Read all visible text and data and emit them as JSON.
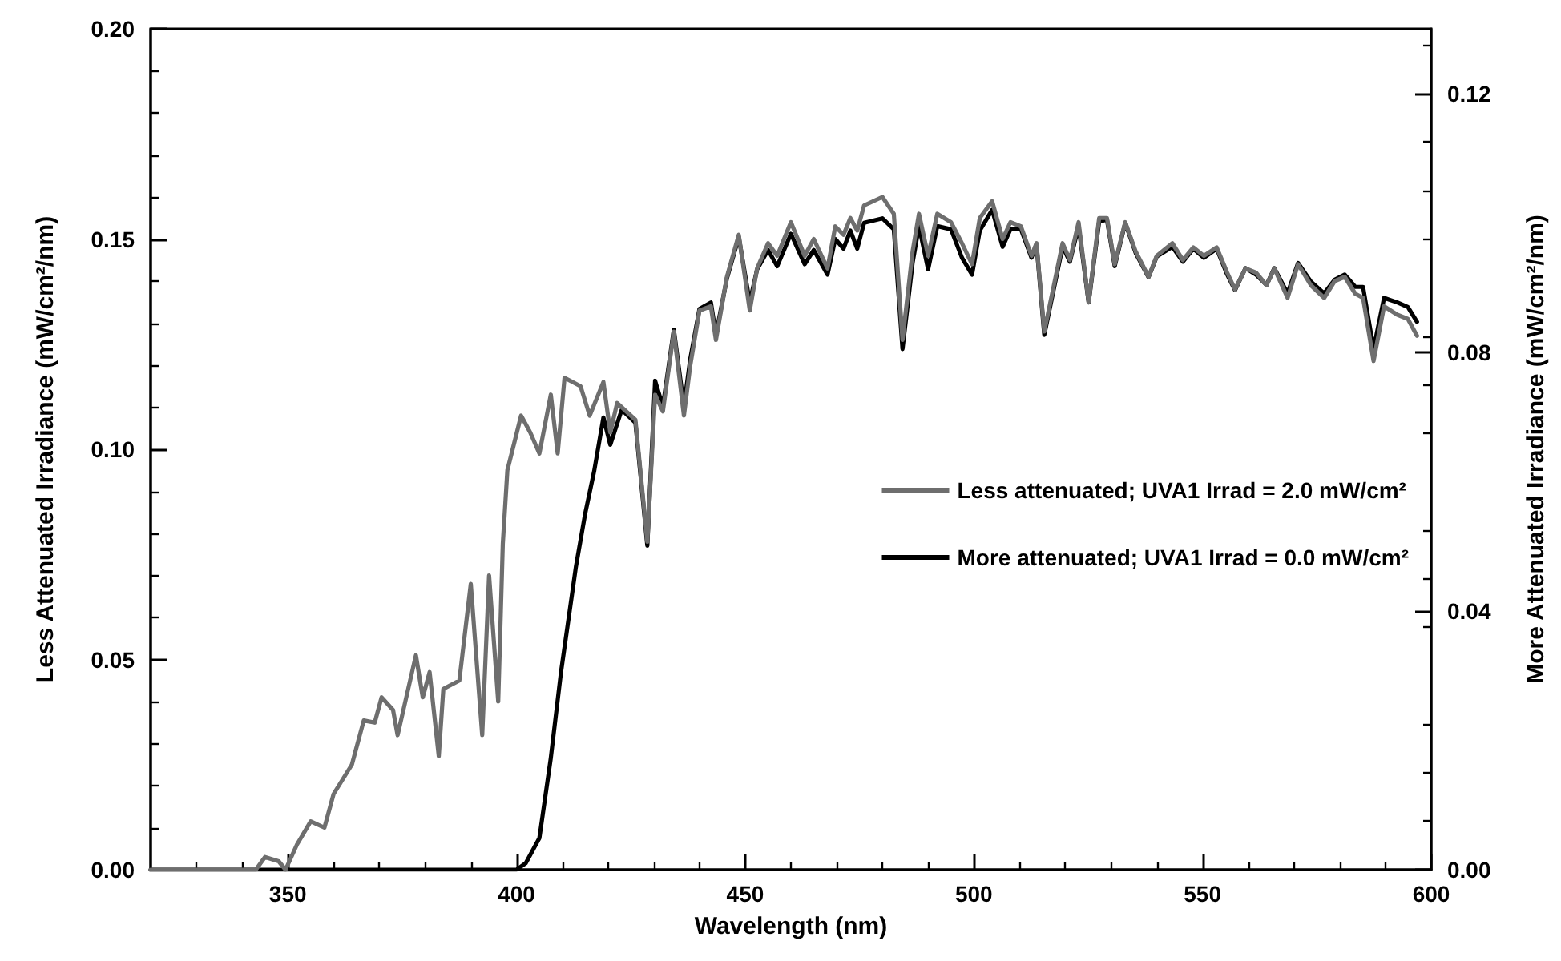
{
  "chart_data": {
    "type": "line",
    "xlabel": "Wavelength (nm)",
    "ylabel": "Less Attenuated Irradiance (mW/cm²/nm)",
    "y2label": "More Attenuated Irradiance (mW/cm²/nm)",
    "xlim": [
      320,
      600
    ],
    "xticks": [
      350,
      400,
      450,
      500,
      550,
      600
    ],
    "ylim": [
      0,
      0.2
    ],
    "yticks": [
      {
        "value": 0,
        "label": "0.00"
      },
      {
        "value": 0.05,
        "label": "0.05"
      },
      {
        "value": 0.1,
        "label": "0.10"
      },
      {
        "value": 0.15,
        "label": "0.15"
      },
      {
        "value": 0.2,
        "label": "0.20"
      }
    ],
    "y2lim": [
      0,
      0.13
    ],
    "y2ticks": [
      {
        "value": 0,
        "label": "0.00"
      },
      {
        "value": 0.04,
        "label": "0.04"
      },
      {
        "value": 0.08,
        "label": "0.08"
      },
      {
        "value": 0.12,
        "label": "0.12"
      }
    ],
    "legend": "bottom right",
    "grid": false,
    "marker": "none",
    "line_style": "solid",
    "series": [
      {
        "name": "Less attenuated; UVA1 Irrad = 2.0 mW/cm²",
        "color": "#6e6e6e",
        "x": [
          320,
          343,
          345,
          348,
          349.5,
          352,
          355,
          358,
          360,
          364,
          366.6,
          369,
          370.5,
          373,
          374,
          378,
          379.5,
          381,
          383,
          384,
          387.5,
          390,
          392.5,
          394,
          396,
          397,
          398,
          401,
          403,
          405,
          407.5,
          409,
          410.5,
          414,
          416,
          419,
          420.5,
          422,
          426,
          428.6,
          430.3,
          432,
          434.4,
          436.6,
          438,
          440,
          442.5,
          443.6,
          446,
          448.6,
          451,
          452.6,
          455,
          457,
          460,
          463,
          465,
          468,
          469.7,
          471.5,
          473,
          474.5,
          476,
          480,
          482.5,
          484.4,
          486.6,
          488,
          490,
          492,
          495,
          497.4,
          499.6,
          501.3,
          504,
          506.3,
          508,
          510.3,
          512.6,
          513.7,
          515.4,
          519.4,
          521,
          522.9,
          525.1,
          527.4,
          529.1,
          530.8,
          533.1,
          535.4,
          538.2,
          540,
          543.4,
          545.7,
          548,
          550.3,
          553.1,
          555.4,
          557.1,
          559.4,
          561.7,
          564,
          565.7,
          568.6,
          570.9,
          573.7,
          576.6,
          578.9,
          581.1,
          583.4,
          585.1,
          587.4,
          589.7,
          592.6,
          594.9,
          596.9
        ],
        "values": [
          0,
          0,
          0.003,
          0.002,
          0,
          0.006,
          0.0115,
          0.01,
          0.018,
          0.025,
          0.0355,
          0.035,
          0.041,
          0.038,
          0.032,
          0.051,
          0.041,
          0.047,
          0.027,
          0.043,
          0.045,
          0.068,
          0.032,
          0.07,
          0.04,
          0.0775,
          0.095,
          0.108,
          0.104,
          0.099,
          0.113,
          0.099,
          0.117,
          0.115,
          0.108,
          0.116,
          0.104,
          0.111,
          0.107,
          0.078,
          0.113,
          0.109,
          0.128,
          0.108,
          0.12,
          0.133,
          0.134,
          0.126,
          0.141,
          0.151,
          0.133,
          0.143,
          0.149,
          0.146,
          0.154,
          0.146,
          0.15,
          0.143,
          0.153,
          0.151,
          0.155,
          0.152,
          0.158,
          0.16,
          0.156,
          0.126,
          0.147,
          0.156,
          0.146,
          0.156,
          0.154,
          0.149,
          0.144,
          0.155,
          0.159,
          0.15,
          0.154,
          0.153,
          0.146,
          0.149,
          0.128,
          0.149,
          0.145,
          0.154,
          0.135,
          0.155,
          0.155,
          0.144,
          0.154,
          0.147,
          0.141,
          0.146,
          0.149,
          0.145,
          0.148,
          0.146,
          0.148,
          0.142,
          0.138,
          0.143,
          0.142,
          0.139,
          0.143,
          0.136,
          0.144,
          0.139,
          0.136,
          0.14,
          0.141,
          0.137,
          0.136,
          0.121,
          0.134,
          0.132,
          0.131,
          0.127
        ]
      },
      {
        "name": "More attenuated; UVA1 Irrad = 0.0 mW/cm²",
        "color": "#000000",
        "axis": "y2",
        "x": [
          320,
          400,
          402,
          405,
          407.5,
          409.7,
          413,
          415,
          417,
          419,
          420.5,
          423,
          426,
          428.6,
          430.3,
          432,
          434.4,
          436.6,
          438,
          440,
          442.5,
          443.6,
          446,
          448.6,
          451,
          452.6,
          455,
          457,
          460,
          463,
          465,
          468,
          469.7,
          471.5,
          473,
          474.5,
          476,
          480,
          482.5,
          484.4,
          486.6,
          488,
          490,
          492,
          495,
          497.4,
          499.6,
          501.3,
          504,
          506.3,
          508,
          510.3,
          512.6,
          513.7,
          515.4,
          519.4,
          521,
          522.9,
          525.1,
          527.4,
          529.1,
          530.8,
          533.1,
          535.4,
          538.2,
          540,
          543.4,
          545.7,
          548,
          550.3,
          553.1,
          555.4,
          557.1,
          559.4,
          561.7,
          564,
          565.7,
          568.6,
          570.9,
          573.7,
          576.6,
          578.9,
          581.1,
          583.4,
          585.1,
          587.4,
          589.7,
          592.6,
          594.9,
          596.9
        ],
        "values": [
          0,
          0,
          0.001,
          0.0049,
          0.0173,
          0.0304,
          0.0469,
          0.055,
          0.0617,
          0.0699,
          0.0657,
          0.0711,
          0.0691,
          0.0501,
          0.0756,
          0.0716,
          0.0835,
          0.0716,
          0.079,
          0.0867,
          0.0877,
          0.0827,
          0.0914,
          0.0978,
          0.0877,
          0.0928,
          0.0958,
          0.0933,
          0.0983,
          0.0936,
          0.0958,
          0.092,
          0.0975,
          0.096,
          0.0988,
          0.096,
          0.1,
          0.1007,
          0.099,
          0.0805,
          0.0938,
          0.0995,
          0.0928,
          0.0995,
          0.099,
          0.0946,
          0.092,
          0.0988,
          0.102,
          0.0963,
          0.099,
          0.099,
          0.0946,
          0.0967,
          0.0827,
          0.0963,
          0.094,
          0.0995,
          0.0877,
          0.1002,
          0.1005,
          0.0933,
          0.1,
          0.0953,
          0.0916,
          0.0948,
          0.0963,
          0.094,
          0.096,
          0.0946,
          0.096,
          0.092,
          0.0896,
          0.093,
          0.092,
          0.0904,
          0.093,
          0.0891,
          0.0938,
          0.0909,
          0.0891,
          0.0912,
          0.092,
          0.0901,
          0.0901,
          0.0805,
          0.0884,
          0.0877,
          0.087,
          0.0847
        ]
      }
    ]
  }
}
